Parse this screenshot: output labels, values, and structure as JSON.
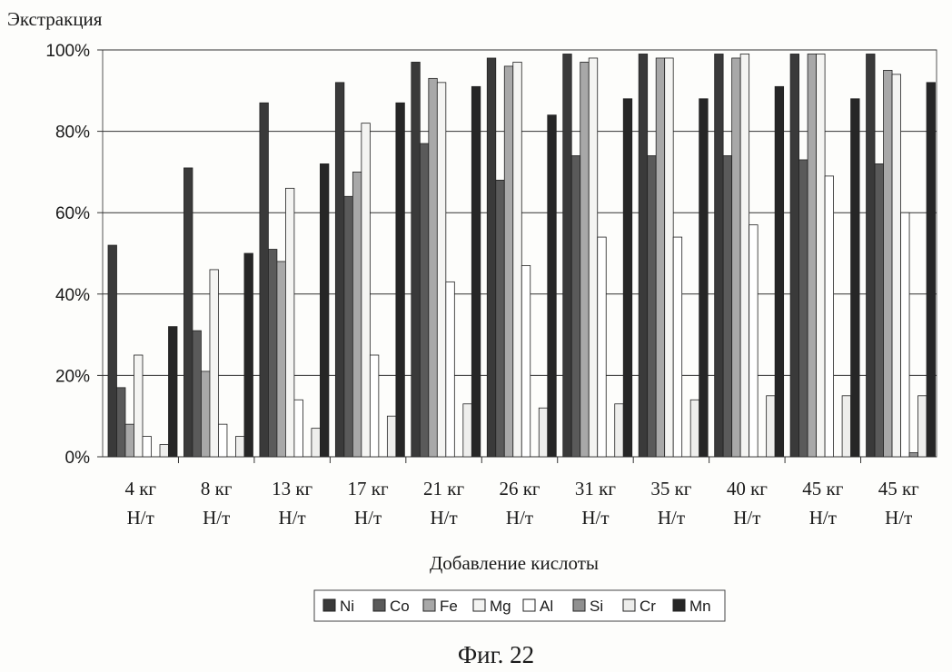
{
  "chart_data": {
    "type": "bar",
    "ylabel": "Экстракция",
    "xlabel": "Добавление кислоты",
    "caption": "Фиг. 22",
    "ylim": [
      0,
      100
    ],
    "yticks": [
      "0%",
      "20%",
      "40%",
      "60%",
      "80%",
      "100%"
    ],
    "grid": true,
    "legend_position": "bottom",
    "categories": [
      {
        "line1": "4 кг",
        "line2": "Н/т"
      },
      {
        "line1": "8 кг",
        "line2": "Н/т"
      },
      {
        "line1": "13 кг",
        "line2": "Н/т"
      },
      {
        "line1": "17 кг",
        "line2": "Н/т"
      },
      {
        "line1": "21 кг",
        "line2": "Н/т"
      },
      {
        "line1": "26 кг",
        "line2": "Н/т"
      },
      {
        "line1": "31 кг",
        "line2": "Н/т"
      },
      {
        "line1": "35 кг",
        "line2": "Н/т"
      },
      {
        "line1": "40 кг",
        "line2": "Н/т"
      },
      {
        "line1": "45 кг",
        "line2": "Н/т"
      },
      {
        "line1": "45 кг",
        "line2": "Н/т"
      }
    ],
    "series": [
      {
        "name": "Ni",
        "color": "#3a3a3a",
        "values": [
          52,
          71,
          87,
          92,
          97,
          98,
          99,
          99,
          99,
          99,
          99
        ]
      },
      {
        "name": "Co",
        "color": "#5a5a5a",
        "values": [
          17,
          31,
          51,
          64,
          77,
          68,
          74,
          74,
          74,
          73,
          72
        ]
      },
      {
        "name": "Fe",
        "color": "#a8a8a8",
        "values": [
          8,
          21,
          48,
          70,
          93,
          96,
          97,
          98,
          98,
          99,
          95
        ]
      },
      {
        "name": "Mg",
        "color": "#f4f4f2",
        "values": [
          25,
          46,
          66,
          82,
          92,
          97,
          98,
          98,
          99,
          99,
          94
        ]
      },
      {
        "name": "Al",
        "color": "#ffffff",
        "values": [
          5,
          8,
          14,
          25,
          43,
          47,
          54,
          54,
          57,
          69,
          60
        ]
      },
      {
        "name": "Si",
        "color": "#909090",
        "values": [
          0,
          0,
          0,
          0,
          0,
          0,
          0,
          0,
          0,
          0,
          1
        ]
      },
      {
        "name": "Cr",
        "color": "#eeeeec",
        "values": [
          3,
          5,
          7,
          10,
          13,
          12,
          13,
          14,
          15,
          15,
          15
        ]
      },
      {
        "name": "Mn",
        "color": "#262626",
        "values": [
          32,
          50,
          72,
          87,
          91,
          84,
          88,
          88,
          91,
          88,
          92
        ]
      }
    ]
  }
}
